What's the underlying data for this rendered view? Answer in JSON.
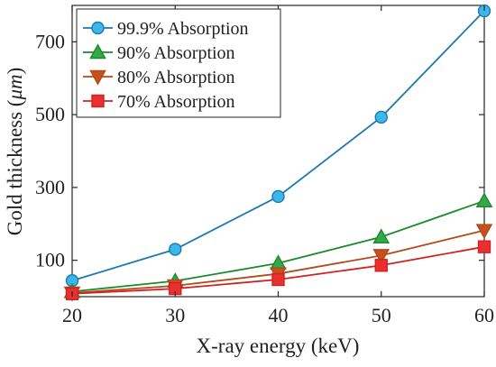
{
  "chart_data": {
    "type": "line",
    "title": "",
    "xlabel": "X-ray energy (keV)",
    "ylabel_prefix": "Gold thickness (",
    "ylabel_unit": "μm",
    "ylabel_suffix": ")",
    "x": [
      20,
      30,
      40,
      50,
      60
    ],
    "xlim": [
      20,
      60
    ],
    "ylim": [
      0,
      800
    ],
    "xticks": [
      20,
      30,
      40,
      50,
      60
    ],
    "yticks": [
      100,
      300,
      500,
      700
    ],
    "grid": false,
    "legend_position": "top-left",
    "series": [
      {
        "name": "99.9% Absorption",
        "marker": "circle",
        "color": "#1F77B4",
        "fill": "#3BB7E8",
        "values": [
          44,
          130,
          275,
          493,
          785
        ]
      },
      {
        "name": "90% Absorption",
        "marker": "triangle-up",
        "color": "#1B8A2E",
        "fill": "#35A84A",
        "values": [
          14,
          43,
          92,
          164,
          263
        ]
      },
      {
        "name": "80% Absorption",
        "marker": "triangle-down",
        "color": "#B24A1A",
        "fill": "#C8501C",
        "values": [
          10,
          30,
          63,
          113,
          182
        ]
      },
      {
        "name": "70% Absorption",
        "marker": "square",
        "color": "#D42020",
        "fill": "#E83030",
        "values": [
          8,
          22,
          47,
          86,
          137
        ]
      }
    ]
  }
}
